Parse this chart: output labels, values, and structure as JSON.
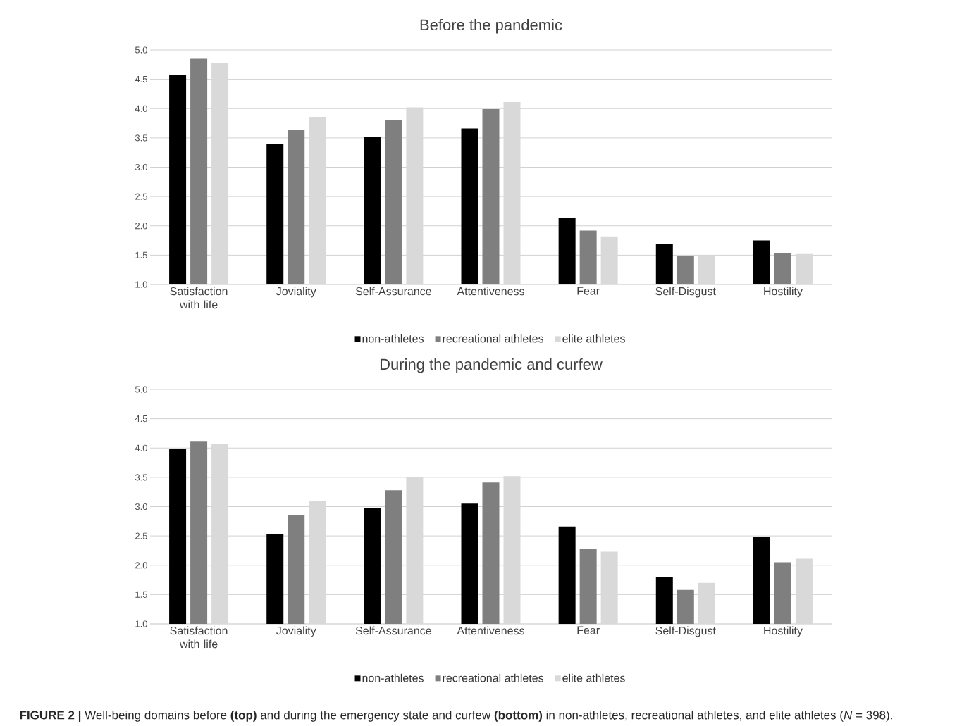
{
  "chart_data": [
    {
      "type": "bar",
      "title": "Before the pandemic",
      "categories": [
        "Satisfaction with life",
        "Joviality",
        "Self-Assurance",
        "Attentiveness",
        "Fear",
        "Self-Disgust",
        "Hostility"
      ],
      "series": [
        {
          "name": "non-athletes",
          "color": "#000000",
          "values": [
            4.57,
            3.39,
            3.52,
            3.66,
            2.14,
            1.69,
            1.75
          ]
        },
        {
          "name": "recreational athletes",
          "color": "#7f7f7f",
          "values": [
            4.85,
            3.64,
            3.8,
            3.99,
            1.92,
            1.48,
            1.54
          ]
        },
        {
          "name": "elite athletes",
          "color": "#d9d9d9",
          "values": [
            4.78,
            3.86,
            4.02,
            4.11,
            1.82,
            1.48,
            1.53
          ]
        }
      ],
      "ylim": [
        1,
        5
      ],
      "yticks": [
        {
          "value": 1,
          "label": "1.0"
        },
        {
          "value": 1.5,
          "label": "1.5"
        },
        {
          "value": 2,
          "label": "2.0"
        },
        {
          "value": 2.5,
          "label": "2.5"
        },
        {
          "value": 3,
          "label": "3.0"
        },
        {
          "value": 3.5,
          "label": "3.5"
        },
        {
          "value": 4,
          "label": "4.0"
        },
        {
          "value": 4.5,
          "label": "4.5"
        },
        {
          "value": 5,
          "label": "5.0"
        }
      ],
      "grid": "y",
      "legend": "bottom"
    },
    {
      "type": "bar",
      "title": "During the pandemic and curfew",
      "categories": [
        "Satisfaction with life",
        "Joviality",
        "Self-Assurance",
        "Attentiveness",
        "Fear",
        "Self-Disgust",
        "Hostility"
      ],
      "series": [
        {
          "name": "non-athletes",
          "color": "#000000",
          "values": [
            3.99,
            2.53,
            2.98,
            3.05,
            2.66,
            1.8,
            2.48
          ]
        },
        {
          "name": "recreational athletes",
          "color": "#7f7f7f",
          "values": [
            4.12,
            2.86,
            3.28,
            3.41,
            2.28,
            1.58,
            2.05
          ]
        },
        {
          "name": "elite athletes",
          "color": "#d9d9d9",
          "values": [
            4.07,
            3.09,
            3.51,
            3.52,
            2.23,
            1.7,
            2.11
          ]
        }
      ],
      "ylim": [
        1,
        5
      ],
      "yticks": [
        {
          "value": 1,
          "label": "1.0"
        },
        {
          "value": 1.5,
          "label": "1.5"
        },
        {
          "value": 2,
          "label": "2.0"
        },
        {
          "value": 2.5,
          "label": "2.5"
        },
        {
          "value": 3,
          "label": "3.0"
        },
        {
          "value": 3.5,
          "label": "3.5"
        },
        {
          "value": 4,
          "label": "4.0"
        },
        {
          "value": 4.5,
          "label": "4.5"
        },
        {
          "value": 5,
          "label": "5.0"
        }
      ],
      "grid": "y",
      "legend": "bottom",
      "annotations": [
        "**FIGURE 2 |** Well-being domains before **(top)** and during the emergency state and curfew **(bottom)** in non-athletes, recreational athletes, and elite athletes (*N* = 398)."
      ]
    }
  ]
}
